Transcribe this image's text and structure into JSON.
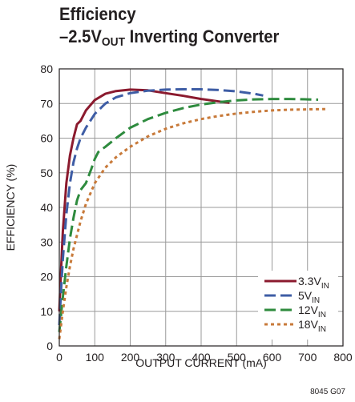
{
  "title": {
    "line1": "Efficiency",
    "line2_prefix": "–2.5V",
    "line2_sub": "OUT",
    "line2_suffix": " Inverting Converter"
  },
  "figure_code": "8045 G07",
  "chart_data": {
    "type": "line",
    "title": "Efficiency –2.5VOUT Inverting Converter",
    "xlabel": "OUTPUT CURRENT (mA)",
    "ylabel": "EFFICIENCY (%)",
    "xlim": [
      0,
      800
    ],
    "ylim": [
      0,
      80
    ],
    "xticks": [
      0,
      100,
      200,
      300,
      400,
      500,
      600,
      700,
      800
    ],
    "yticks": [
      0,
      10,
      20,
      30,
      40,
      50,
      60,
      70,
      80
    ],
    "grid": true,
    "legend_position": "bottom-right",
    "series": [
      {
        "name": "3.3VIN",
        "name_main": "3.3V",
        "name_sub": "IN",
        "color": "#8b1a2e",
        "style": "solid",
        "x": [
          0,
          5,
          10,
          20,
          30,
          40,
          50,
          60,
          75,
          100,
          130,
          160,
          200,
          250,
          300,
          350,
          400,
          450,
          480
        ],
        "y": [
          10,
          22,
          33,
          47,
          55,
          60,
          64,
          65,
          68,
          71,
          72.8,
          73.6,
          74,
          73.8,
          73,
          72.2,
          71.3,
          70.6,
          70.2
        ]
      },
      {
        "name": "5VIN",
        "name_main": "5V",
        "name_sub": "IN",
        "color": "#3e5da5",
        "style": "dashed",
        "x": [
          0,
          5,
          10,
          20,
          30,
          40,
          50,
          60,
          75,
          100,
          130,
          160,
          200,
          250,
          300,
          350,
          400,
          450,
          500,
          550,
          575
        ],
        "y": [
          6,
          16,
          25,
          38,
          47,
          53,
          57,
          60,
          63,
          67,
          70,
          71.8,
          73,
          73.7,
          74,
          74.1,
          74.1,
          73.9,
          73.5,
          72.8,
          72.3
        ]
      },
      {
        "name": "12VIN",
        "name_main": "12V",
        "name_sub": "IN",
        "color": "#2e8b3e",
        "style": "dashed",
        "x": [
          0,
          5,
          10,
          20,
          30,
          40,
          50,
          60,
          75,
          90,
          100,
          110,
          130,
          160,
          200,
          250,
          300,
          350,
          400,
          450,
          500,
          550,
          600,
          650,
          700,
          730
        ],
        "y": [
          4,
          9,
          14,
          23,
          31,
          37,
          42,
          45,
          47,
          51,
          54,
          56,
          57.5,
          60,
          63,
          65.5,
          67.3,
          68.7,
          69.7,
          70.4,
          70.9,
          71.2,
          71.3,
          71.3,
          71.2,
          71.1
        ]
      },
      {
        "name": "18VIN",
        "name_main": "18V",
        "name_sub": "IN",
        "color": "#c87a3a",
        "style": "dotted",
        "x": [
          0,
          5,
          10,
          20,
          30,
          40,
          50,
          60,
          75,
          100,
          130,
          160,
          200,
          250,
          300,
          350,
          400,
          450,
          500,
          550,
          600,
          650,
          700,
          750
        ],
        "y": [
          2,
          6,
          10,
          17,
          23,
          28,
          32,
          36,
          41,
          47,
          51.5,
          54.5,
          57.5,
          60.5,
          62.7,
          64.3,
          65.5,
          66.4,
          67.1,
          67.6,
          68,
          68.2,
          68.3,
          68.4
        ]
      }
    ]
  }
}
